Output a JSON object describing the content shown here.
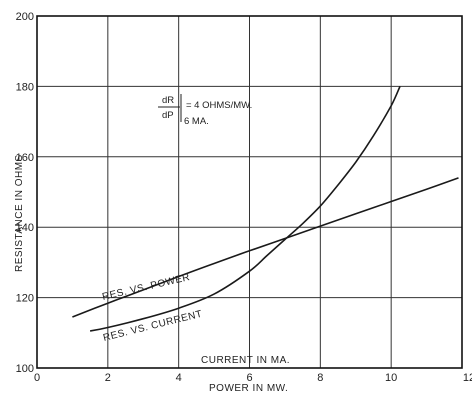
{
  "chart_data": {
    "type": "line",
    "ylabel": "RESISTANCE IN OHMS",
    "xlabel_primary": "POWER IN MW.",
    "xlabel_secondary": "CURRENT IN MA.",
    "xlim": [
      0,
      12
    ],
    "ylim": [
      100,
      200
    ],
    "x_ticks": [
      "0",
      "2",
      "4",
      "6",
      "8",
      "10",
      "12"
    ],
    "y_ticks": [
      "100",
      "120",
      "140",
      "160",
      "180",
      "200"
    ],
    "grid": true,
    "annotation": {
      "numerator": "dR",
      "denominator": "dP",
      "value": "= 4 OHMS/MW.",
      "subscript": "6 MA."
    },
    "series": [
      {
        "name": "RES. VS. POWER",
        "x": [
          1.0,
          2.0,
          3.0,
          4.0,
          5.0,
          6.0,
          7.0,
          8.0,
          9.0,
          10.0,
          11.0,
          11.9
        ],
        "y": [
          114.5,
          118.4,
          122.2,
          126.0,
          129.7,
          133.3,
          136.8,
          140.3,
          143.8,
          147.3,
          150.8,
          154.0
        ]
      },
      {
        "name": "RES. VS. CURRENT",
        "x": [
          1.5,
          2.0,
          3.0,
          4.0,
          5.0,
          6.0,
          6.5,
          7.0,
          7.5,
          8.0,
          8.5,
          9.0,
          9.5,
          10.0,
          10.25
        ],
        "y": [
          110.5,
          111.5,
          114.0,
          117.0,
          121.0,
          127.5,
          132.0,
          136.5,
          141.0,
          146.0,
          152.0,
          158.5,
          166.0,
          174.5,
          180.0
        ]
      }
    ]
  },
  "colors": {
    "line": "#1a1a1a",
    "grid": "#333333",
    "background": "#ffffff"
  }
}
